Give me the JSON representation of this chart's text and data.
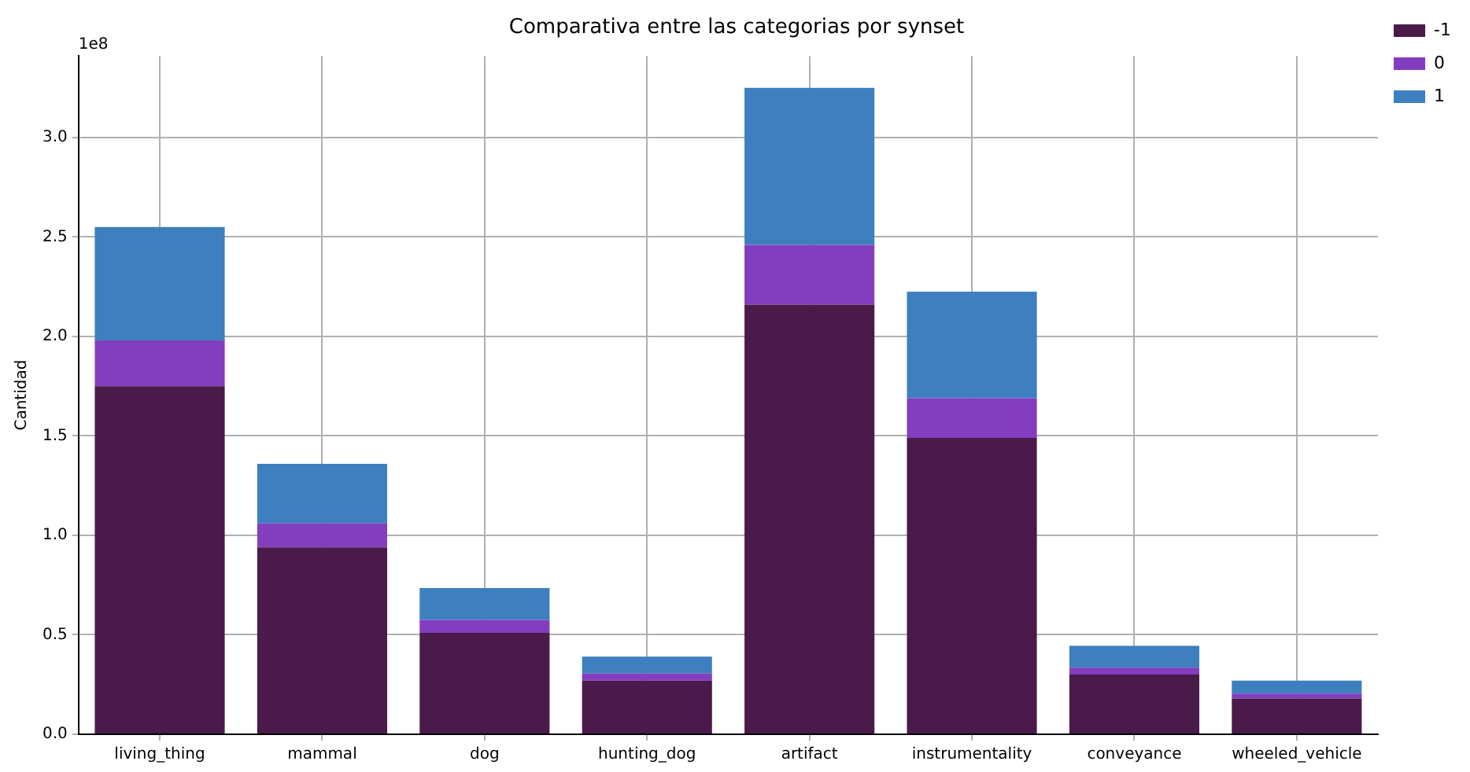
{
  "chart_data": {
    "type": "bar",
    "title": "Comparativa entre las categorias por synset",
    "ylabel": "Cantidad",
    "categories": [
      "living_thing",
      "mammal",
      "dog",
      "hunting_dog",
      "artifact",
      "instrumentality",
      "conveyance",
      "wheeled_vehicle"
    ],
    "stacked": true,
    "series": [
      {
        "name": "-1",
        "color": "#4a1a4a",
        "values": [
          1.75,
          0.94,
          0.51,
          0.27,
          2.16,
          1.49,
          0.3,
          0.18
        ]
      },
      {
        "name": "0",
        "color": "#833dbf",
        "values": [
          0.23,
          0.12,
          0.065,
          0.035,
          0.3,
          0.2,
          0.035,
          0.025
        ]
      },
      {
        "name": "1",
        "color": "#3d7fbf",
        "values": [
          0.57,
          0.3,
          0.16,
          0.085,
          0.79,
          0.535,
          0.11,
          0.065
        ]
      }
    ],
    "ylim": [
      0,
      3.41
    ],
    "yticks": [
      {
        "value": 0,
        "label": "0.0"
      },
      {
        "value": 0.5,
        "label": "0.5"
      },
      {
        "value": 1,
        "label": "1.0"
      },
      {
        "value": 1.5,
        "label": "1.5"
      },
      {
        "value": 2,
        "label": "2.0"
      },
      {
        "value": 2.5,
        "label": "2.5"
      },
      {
        "value": 3,
        "label": "3.0"
      }
    ],
    "annotations": [
      "1e8"
    ],
    "grid": true,
    "legend": "top right"
  }
}
